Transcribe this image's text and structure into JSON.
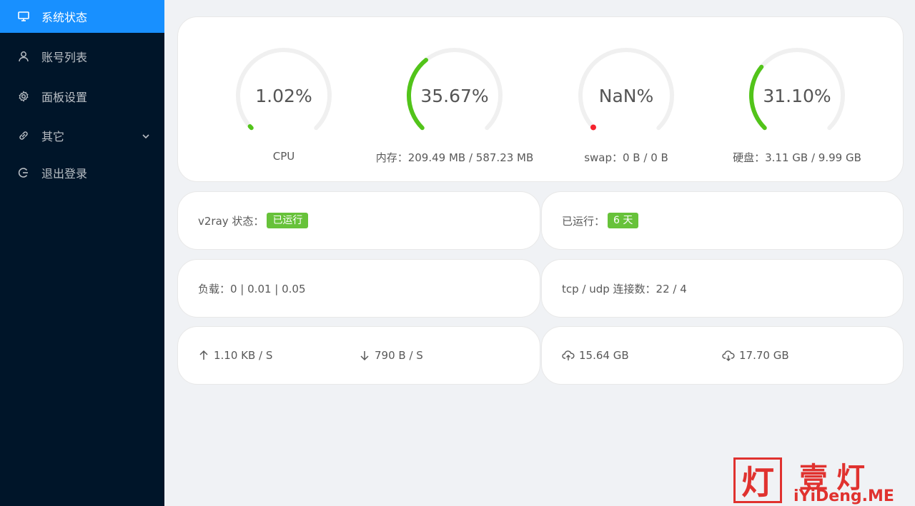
{
  "sidebar": {
    "items": [
      {
        "label": "系统状态",
        "icon": "desktop-icon",
        "active": true
      },
      {
        "label": "账号列表",
        "icon": "user-icon"
      },
      {
        "label": "面板设置",
        "icon": "gear-icon"
      },
      {
        "label": "其它",
        "icon": "link-icon"
      },
      {
        "label": "退出登录",
        "icon": "logout-icon"
      }
    ]
  },
  "gauges": [
    {
      "value": "1.02%",
      "label": "CPU",
      "percent": 1.02,
      "color": "#52c41a"
    },
    {
      "value": "35.67%",
      "label": "内存：209.49 MB / 587.23 MB",
      "percent": 35.67,
      "color": "#52c41a"
    },
    {
      "value": "NaN%",
      "label": "swap：0 B / 0 B",
      "percent": 0,
      "color": "#f5222d"
    },
    {
      "value": "31.10%",
      "label": "硬盘：3.11 GB / 9.99 GB",
      "percent": 31.1,
      "color": "#52c41a"
    }
  ],
  "status": {
    "v2ray_label": "v2ray 状态：",
    "v2ray_tag": "已运行",
    "uptime_label": "已运行：",
    "uptime_tag": "6 天",
    "load": "负载：0 | 0.01 | 0.05",
    "connections": "tcp / udp 连接数：22 / 4"
  },
  "network": {
    "upload_speed": "1.10 KB / S",
    "download_speed": "790 B / S",
    "upload_total": "15.64 GB",
    "download_total": "17.70 GB"
  },
  "watermark": {
    "box_char": "灯",
    "title": "壹灯",
    "url": "iYiDeng.ME"
  },
  "colors": {
    "sidebar_bg": "#001529",
    "active_bg": "#1890ff",
    "ok_green": "#67c23a",
    "gauge_green": "#52c41a",
    "gauge_red": "#f5222d"
  }
}
